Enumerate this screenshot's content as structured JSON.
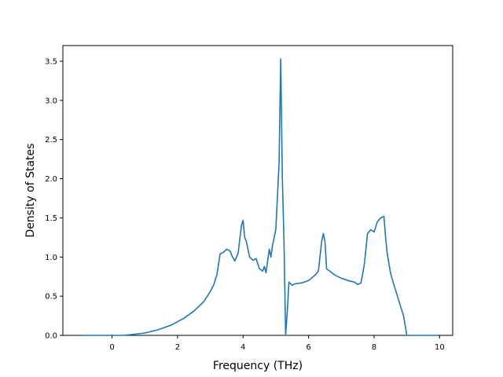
{
  "chart_data": {
    "type": "line",
    "title": "",
    "xlabel": "Frequency (THz)",
    "ylabel": "Density of States",
    "xlim": [
      -1.5,
      10.4
    ],
    "ylim": [
      0.0,
      3.7
    ],
    "x_ticks": [
      0,
      2,
      4,
      6,
      8,
      10
    ],
    "y_ticks": [
      0.0,
      0.5,
      1.0,
      1.5,
      2.0,
      2.5,
      3.0,
      3.5
    ],
    "x_tick_labels": [
      "0",
      "2",
      "4",
      "6",
      "8",
      "10"
    ],
    "y_tick_labels": [
      "0.0",
      "0.5",
      "1.0",
      "1.5",
      "2.0",
      "2.5",
      "3.0",
      "3.5"
    ],
    "grid": false,
    "legend": "none",
    "series": [
      {
        "color": "#1f77b4",
        "x": [
          -0.9,
          -0.5,
          0.0,
          0.3,
          0.6,
          1.0,
          1.4,
          1.8,
          2.2,
          2.5,
          2.8,
          3.0,
          3.1,
          3.2,
          3.3,
          3.4,
          3.5,
          3.6,
          3.68,
          3.75,
          3.85,
          3.95,
          4.0,
          4.05,
          4.1,
          4.2,
          4.3,
          4.4,
          4.5,
          4.6,
          4.65,
          4.7,
          4.8,
          4.85,
          4.9,
          5.0,
          5.1,
          5.15,
          5.2,
          5.25,
          5.3,
          5.35,
          5.4,
          5.5,
          5.6,
          5.8,
          6.0,
          6.2,
          6.3,
          6.4,
          6.45,
          6.5,
          6.55,
          6.65,
          6.8,
          7.0,
          7.2,
          7.4,
          7.5,
          7.6,
          7.7,
          7.8,
          7.9,
          8.0,
          8.1,
          8.2,
          8.3,
          8.35,
          8.4,
          8.5,
          8.6,
          8.7,
          8.8,
          8.9,
          9.0,
          9.3,
          9.6,
          9.9
        ],
        "y": [
          0.0,
          0.0,
          0.0,
          0.0,
          0.01,
          0.03,
          0.07,
          0.13,
          0.22,
          0.31,
          0.43,
          0.56,
          0.64,
          0.77,
          1.04,
          1.06,
          1.1,
          1.08,
          1.0,
          0.95,
          1.05,
          1.4,
          1.47,
          1.25,
          1.2,
          1.0,
          0.96,
          0.98,
          0.85,
          0.82,
          0.88,
          0.8,
          1.1,
          1.0,
          1.15,
          1.35,
          2.2,
          3.53,
          2.0,
          1.2,
          0.0,
          0.3,
          0.68,
          0.64,
          0.66,
          0.67,
          0.7,
          0.77,
          0.82,
          1.2,
          1.3,
          1.2,
          0.85,
          0.82,
          0.77,
          0.73,
          0.7,
          0.68,
          0.65,
          0.67,
          0.9,
          1.3,
          1.35,
          1.32,
          1.45,
          1.5,
          1.52,
          1.26,
          1.05,
          0.8,
          0.65,
          0.52,
          0.38,
          0.25,
          0.0,
          0.0,
          0.0,
          0.0
        ]
      }
    ]
  }
}
